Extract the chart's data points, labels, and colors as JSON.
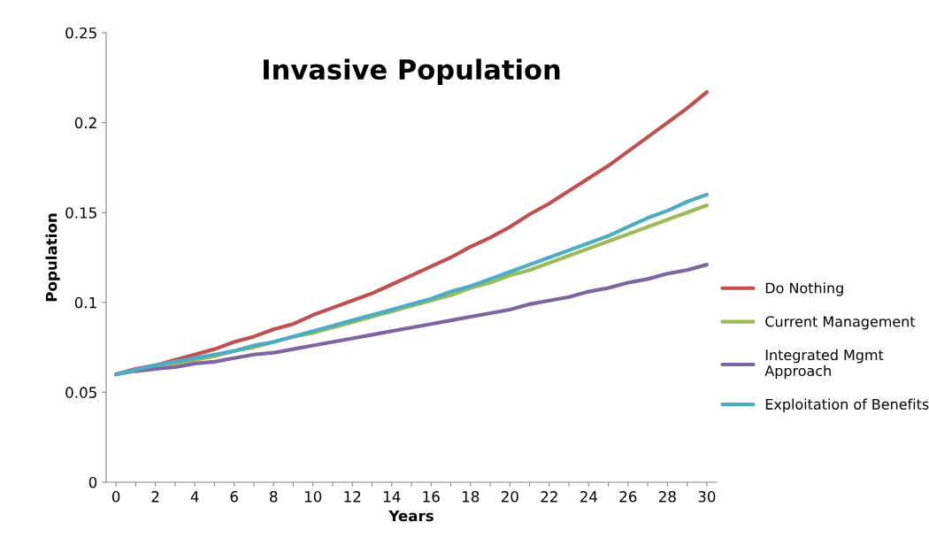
{
  "chart_data": {
    "type": "line",
    "title": "Invasive Population",
    "xlabel": "Years",
    "ylabel": "Population",
    "x": [
      0,
      1,
      2,
      3,
      4,
      5,
      6,
      7,
      8,
      9,
      10,
      11,
      12,
      13,
      14,
      15,
      16,
      17,
      18,
      19,
      20,
      21,
      22,
      23,
      24,
      25,
      26,
      27,
      28,
      29,
      30
    ],
    "xlim": [
      -0.5,
      30.5
    ],
    "xticks": [
      0,
      {
        "value": 1,
        "label": null
      },
      2,
      {
        "value": 3,
        "label": null
      },
      4,
      {
        "value": 5,
        "label": null
      },
      6,
      {
        "value": 7,
        "label": null
      },
      8,
      {
        "value": 9,
        "label": null
      },
      10,
      {
        "value": 11,
        "label": null
      },
      12,
      {
        "value": 13,
        "label": null
      },
      14,
      {
        "value": 15,
        "label": null
      },
      16,
      {
        "value": 17,
        "label": null
      },
      18,
      {
        "value": 19,
        "label": null
      },
      20,
      {
        "value": 21,
        "label": null
      },
      22,
      {
        "value": 23,
        "label": null
      },
      24,
      {
        "value": 25,
        "label": null
      },
      26,
      {
        "value": 27,
        "label": null
      },
      28,
      {
        "value": 29,
        "label": null
      },
      30
    ],
    "ylim": [
      0,
      0.25
    ],
    "yticks": [
      0,
      0.05,
      0.1,
      0.15,
      0.2,
      0.25
    ],
    "grid": false,
    "legend": "right",
    "marker": "none",
    "line_style": "solid",
    "series": [
      {
        "name": "Do Nothing",
        "color": "#c0504d",
        "values": [
          0.06,
          0.063,
          0.065,
          0.068,
          0.071,
          0.074,
          0.078,
          0.081,
          0.085,
          0.088,
          0.093,
          0.097,
          0.101,
          0.105,
          0.11,
          0.115,
          0.12,
          0.125,
          0.131,
          0.136,
          0.142,
          0.149,
          0.155,
          0.162,
          0.169,
          0.176,
          0.184,
          0.192,
          0.2,
          0.208,
          0.217
        ]
      },
      {
        "name": "Current Management",
        "color": "#9bbb59",
        "values": [
          null,
          0.0615,
          0.063,
          0.066,
          0.068,
          0.07,
          0.073,
          0.075,
          0.078,
          0.081,
          0.083,
          0.086,
          0.089,
          0.092,
          0.095,
          0.098,
          0.101,
          0.104,
          0.108,
          0.111,
          0.115,
          0.118,
          0.122,
          0.126,
          0.13,
          0.134,
          0.138,
          0.142,
          0.146,
          0.15,
          0.154
        ]
      },
      {
        "name": "Integrated Mgmt\nApproach",
        "color": "#8064a2",
        "values": [
          0.06,
          0.062,
          0.063,
          0.064,
          0.066,
          0.067,
          0.069,
          0.071,
          0.072,
          0.074,
          0.076,
          0.078,
          0.08,
          0.082,
          0.084,
          0.086,
          0.088,
          0.09,
          0.092,
          0.094,
          0.096,
          0.099,
          0.101,
          0.103,
          0.106,
          0.108,
          0.111,
          0.113,
          0.116,
          0.118,
          0.121
        ]
      },
      {
        "name": "Exploitation of Benefits",
        "color": "#4bacc6",
        "values": [
          0.06,
          0.0625,
          0.065,
          0.067,
          0.069,
          0.071,
          0.073,
          0.076,
          0.078,
          0.081,
          0.084,
          0.087,
          0.09,
          0.093,
          0.096,
          0.099,
          0.102,
          0.106,
          0.109,
          0.113,
          0.117,
          0.121,
          0.125,
          0.129,
          0.133,
          0.137,
          0.142,
          0.147,
          0.151,
          0.156,
          0.16
        ]
      }
    ]
  }
}
